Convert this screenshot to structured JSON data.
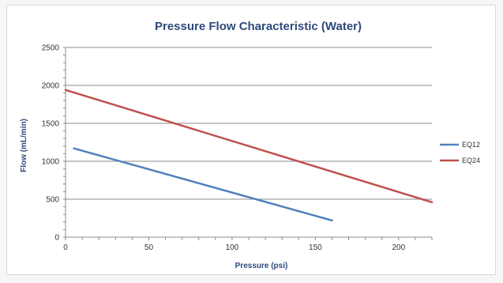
{
  "chart_data": {
    "type": "line",
    "title": "Pressure Flow Characteristic (Water)",
    "xlabel": "Pressure (psi)",
    "ylabel": "Flow (mL/min)",
    "xlim": [
      0,
      220
    ],
    "ylim": [
      0,
      2500
    ],
    "xticks": [
      0,
      50,
      100,
      150,
      200
    ],
    "yticks": [
      0,
      500,
      1000,
      1500,
      2000,
      2500
    ],
    "grid": "horizontal",
    "legend_position": "right",
    "series": [
      {
        "name": "EQ12",
        "color": "#4f81bd",
        "x": [
          5,
          160
        ],
        "y": [
          1170,
          220
        ]
      },
      {
        "name": "EQ24",
        "color": "#c0504d",
        "x": [
          0,
          220
        ],
        "y": [
          1940,
          460
        ]
      }
    ]
  }
}
